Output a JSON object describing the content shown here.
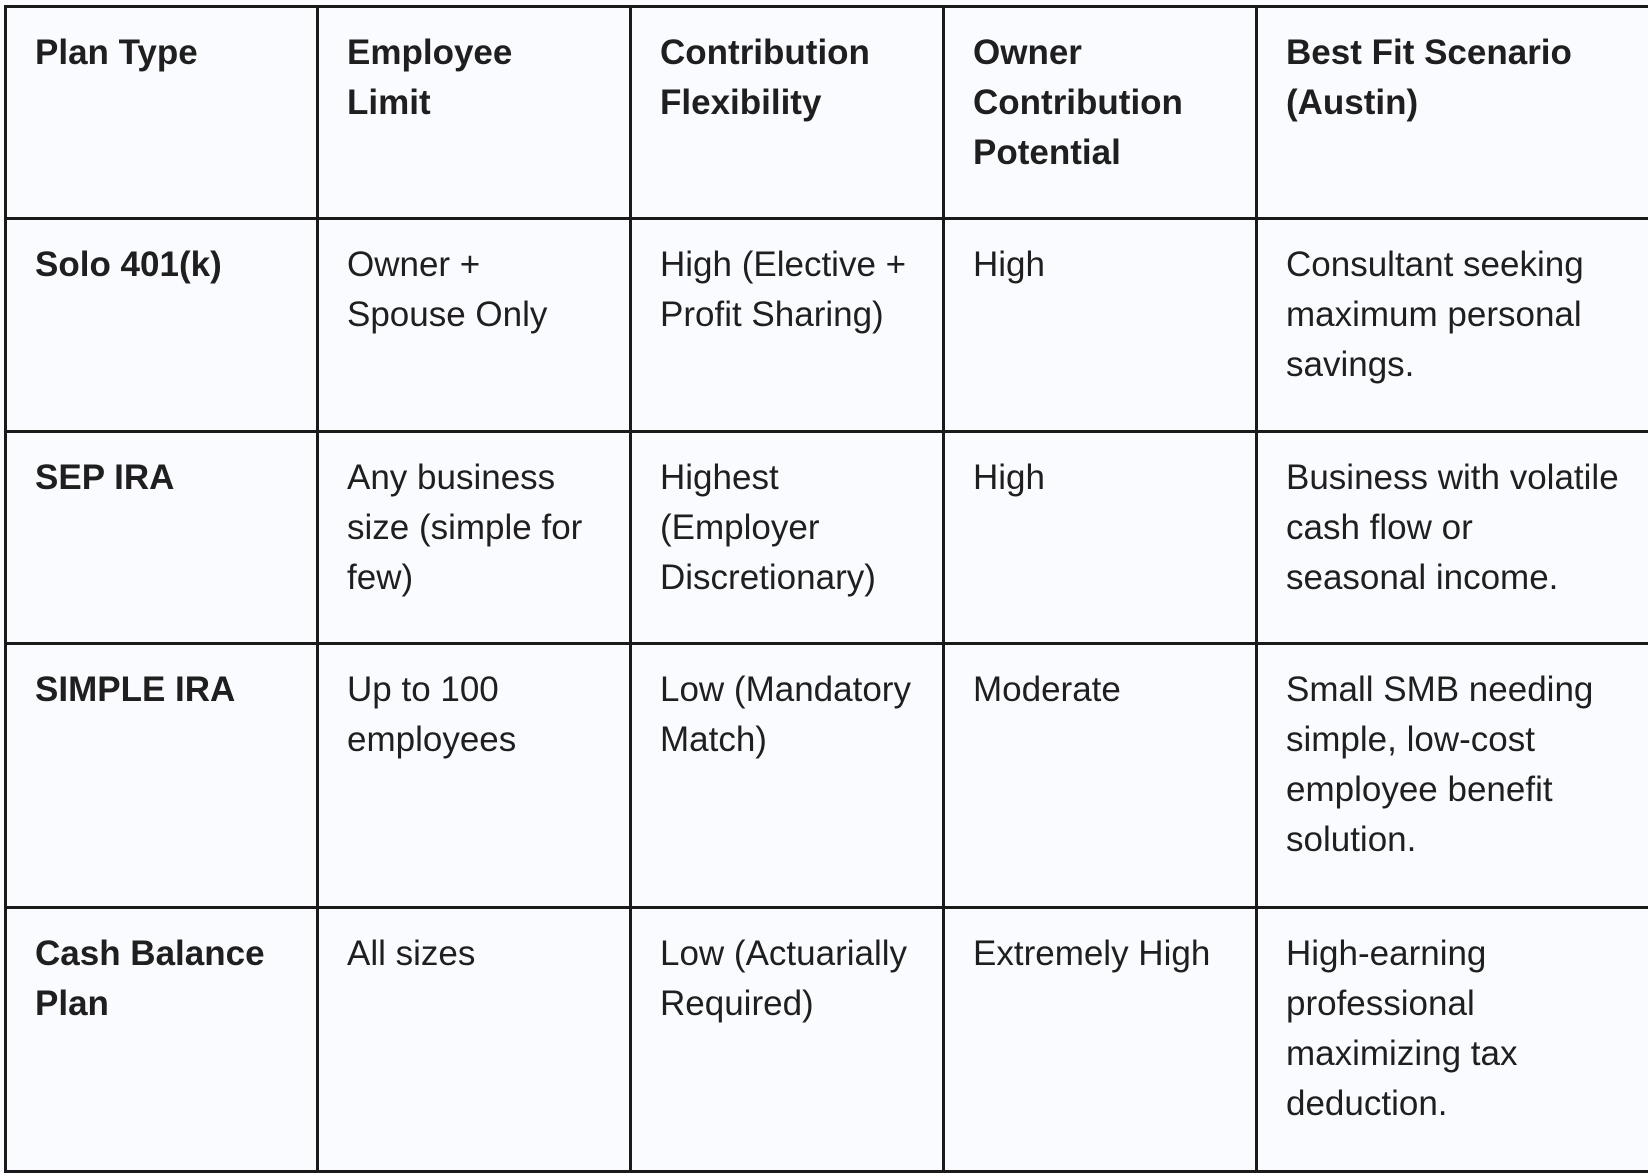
{
  "table": {
    "headers": [
      "Plan Type",
      "Employee Limit",
      "Contribution Flexibility",
      "Owner Contribution Potential",
      "Best Fit Scenario (Austin)"
    ],
    "rows": [
      [
        "Solo 401(k)",
        "Owner + Spouse Only",
        "High (Elective + Profit Sharing)",
        "High",
        "Consultant seeking maximum personal savings."
      ],
      [
        "SEP IRA",
        "Any business size (simple for few)",
        "Highest (Employer Discretionary)",
        "High",
        "Business with volatile cash flow or seasonal income."
      ],
      [
        "SIMPLE IRA",
        "Up to 100 employees",
        "Low (Mandatory Match)",
        "Moderate",
        "Small SMB needing simple, low-cost employee benefit solution."
      ],
      [
        "Cash Balance Plan",
        "All sizes",
        "Low (Actuarially Required)",
        "Extremely High",
        "High-earning professional maximizing tax deduction."
      ]
    ]
  },
  "colors": {
    "background": "#fafbfe",
    "border": "#1a1a1a",
    "text": "#1f1f1f"
  }
}
